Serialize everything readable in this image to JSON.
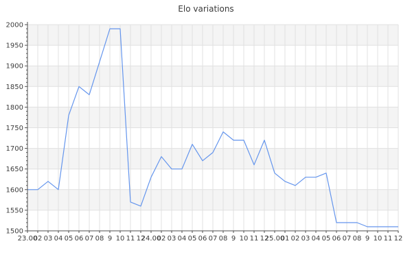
{
  "title": "Elo variations",
  "chart_data": {
    "type": "line",
    "title": "Elo variations",
    "x_labels": [
      "23.00",
      "02",
      "03",
      "04",
      "05",
      "06",
      "07",
      "08",
      "9",
      "10",
      "11",
      "12",
      "24.00",
      "02",
      "03",
      "04",
      "05",
      "06",
      "07",
      "08",
      "9",
      "10",
      "11",
      "12",
      "25.00",
      "01",
      "02",
      "03",
      "04",
      "05",
      "06",
      "07",
      "08",
      "9",
      "10",
      "11",
      "12"
    ],
    "values": [
      1600,
      1600,
      1620,
      1600,
      1780,
      1850,
      1830,
      1910,
      1990,
      1990,
      1570,
      1560,
      1630,
      1680,
      1650,
      1650,
      1710,
      1670,
      1690,
      1740,
      1720,
      1720,
      1660,
      1720,
      1640,
      1620,
      1610,
      1630,
      1630,
      1640,
      1520,
      1520,
      1520,
      1510,
      1510,
      1510,
      1510
    ],
    "ylabel": "",
    "xlabel": "",
    "ylim": [
      1500,
      2000
    ],
    "y_tick_step": 50,
    "y_minor_step": 10,
    "y_tick_labels": [
      "1500",
      "1550",
      "1600",
      "1650",
      "1700",
      "1750",
      "1800",
      "1850",
      "1900",
      "1950",
      "2000"
    ],
    "legend": "none",
    "grid": true,
    "colors": {
      "line": "#6495ed",
      "band": "#f4f4f4",
      "grid": "#e0e0e0",
      "axis": "#4d4d4d",
      "label": "#3c3c3c"
    }
  }
}
